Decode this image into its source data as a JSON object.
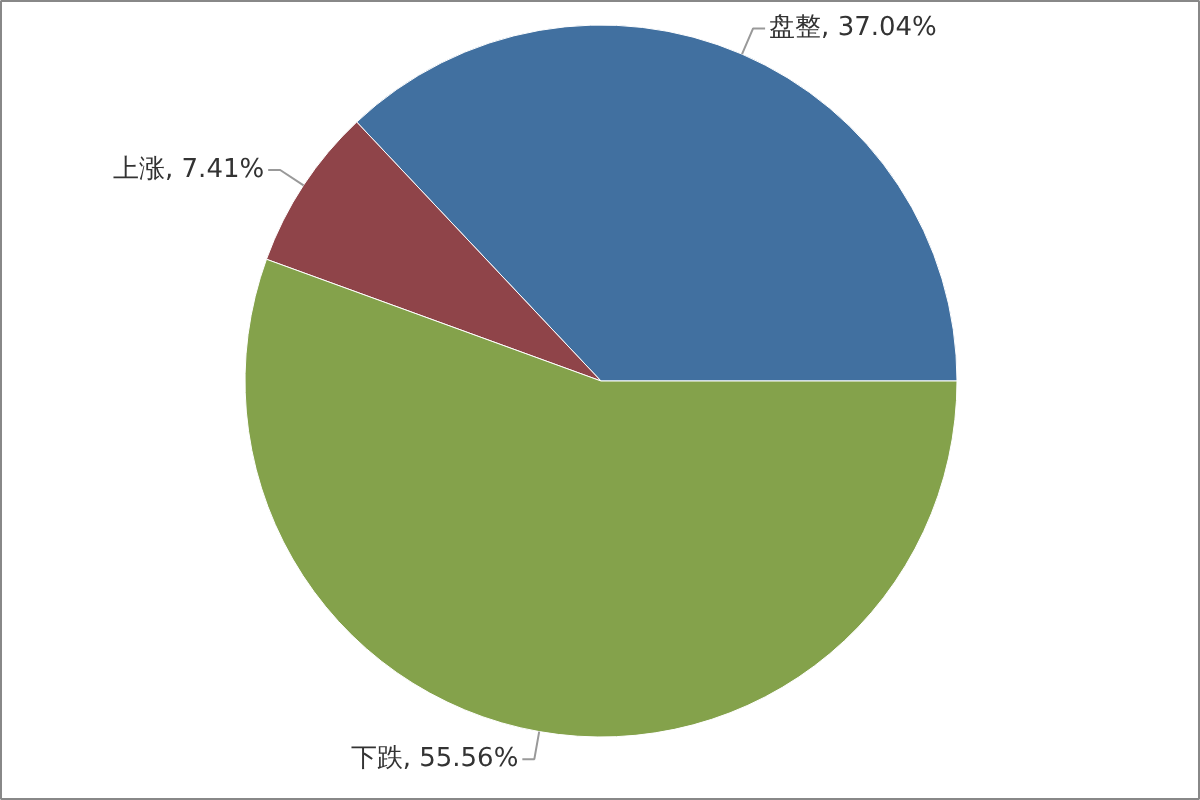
{
  "chart_data": {
    "type": "pie",
    "categories": [
      "盘整",
      "上涨",
      "下跌"
    ],
    "values": [
      37.04,
      7.41,
      55.56
    ],
    "colors": [
      "#4170a0",
      "#8f4449",
      "#84a24b"
    ],
    "value_labels": [
      "37.04%",
      "7.41%",
      "55.56%"
    ]
  }
}
